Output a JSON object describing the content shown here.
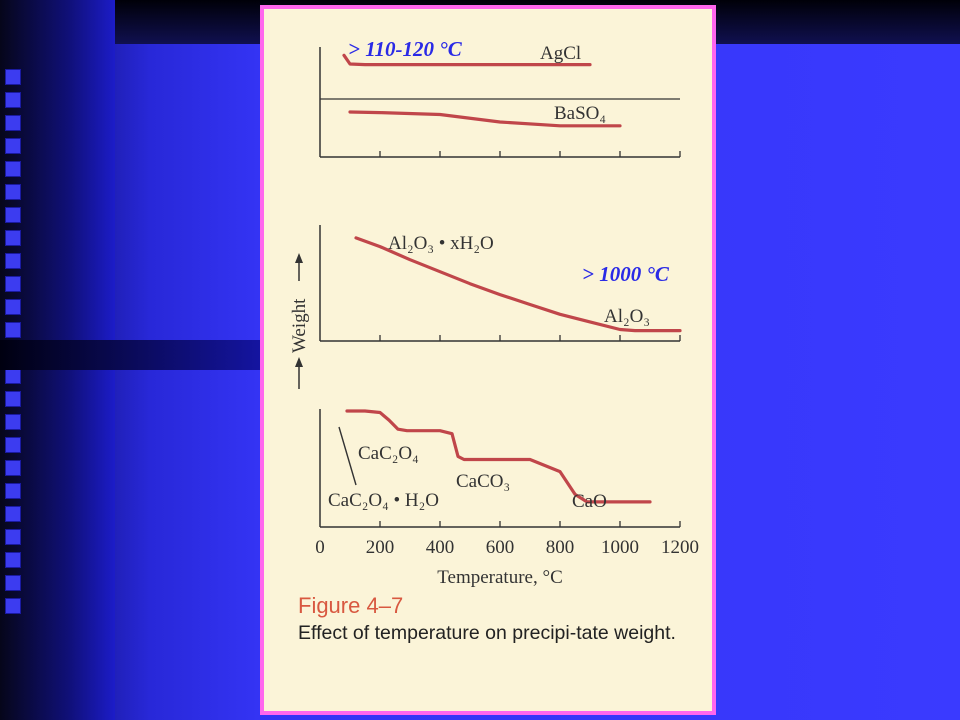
{
  "annotations": {
    "top": "> 110-120 °C",
    "middle": "> 1000 °C"
  },
  "figure": {
    "number": "Figure 4–7",
    "caption": "Effect of temperature on precipi-tate weight."
  },
  "colors": {
    "curve": "#c0464a",
    "annotation": "#2a2ae6",
    "panel_border": "#ff66ee",
    "caption_number": "#d85840"
  },
  "chart_data": [
    {
      "type": "line",
      "series": [
        {
          "name": "AgCl",
          "x": [
            80,
            100,
            150,
            300,
            600,
            900
          ],
          "y": [
            0.7,
            0.0,
            -0.05,
            -0.05,
            -0.05,
            -0.05
          ]
        },
        {
          "name": "BaSO₄",
          "x": [
            100,
            200,
            400,
            600,
            800,
            1000
          ],
          "y": [
            0.0,
            -0.05,
            -0.2,
            -0.8,
            -1.1,
            -1.1
          ]
        }
      ]
    },
    {
      "type": "line",
      "ylabel": "Weight",
      "series": [
        {
          "name": "Al₂O₃ • xH₂O",
          "x": [
            120,
            200,
            300,
            400,
            500,
            600,
            700,
            800,
            900,
            1000,
            1050,
            1200
          ],
          "y": [
            10.0,
            9.2,
            8.0,
            6.9,
            5.8,
            4.8,
            3.9,
            3.0,
            2.3,
            1.6,
            1.5,
            1.5
          ]
        },
        {
          "name": "Al₂O₃",
          "x": [
            1050,
            1200
          ],
          "y": [
            1.5,
            1.5
          ]
        }
      ]
    },
    {
      "type": "line",
      "xlabel": "Temperature, °C",
      "xlim": [
        0,
        1200
      ],
      "x_ticks": [
        0,
        200,
        400,
        600,
        800,
        1000,
        1200
      ],
      "series": [
        {
          "name": "CaC₂O₄ • H₂O",
          "x": [
            90,
            150,
            200,
            230,
            260,
            290,
            350,
            400,
            440,
            460,
            480,
            520,
            600,
            700,
            800,
            850,
            890,
            950,
            1100
          ],
          "y": [
            100,
            100,
            99,
            94,
            88,
            87,
            87,
            87,
            85,
            70,
            68,
            68,
            68,
            68,
            60,
            45,
            40,
            40,
            40
          ]
        }
      ],
      "labels": [
        "CaC₂O₄",
        "CaCO₃",
        "CaO"
      ]
    }
  ]
}
